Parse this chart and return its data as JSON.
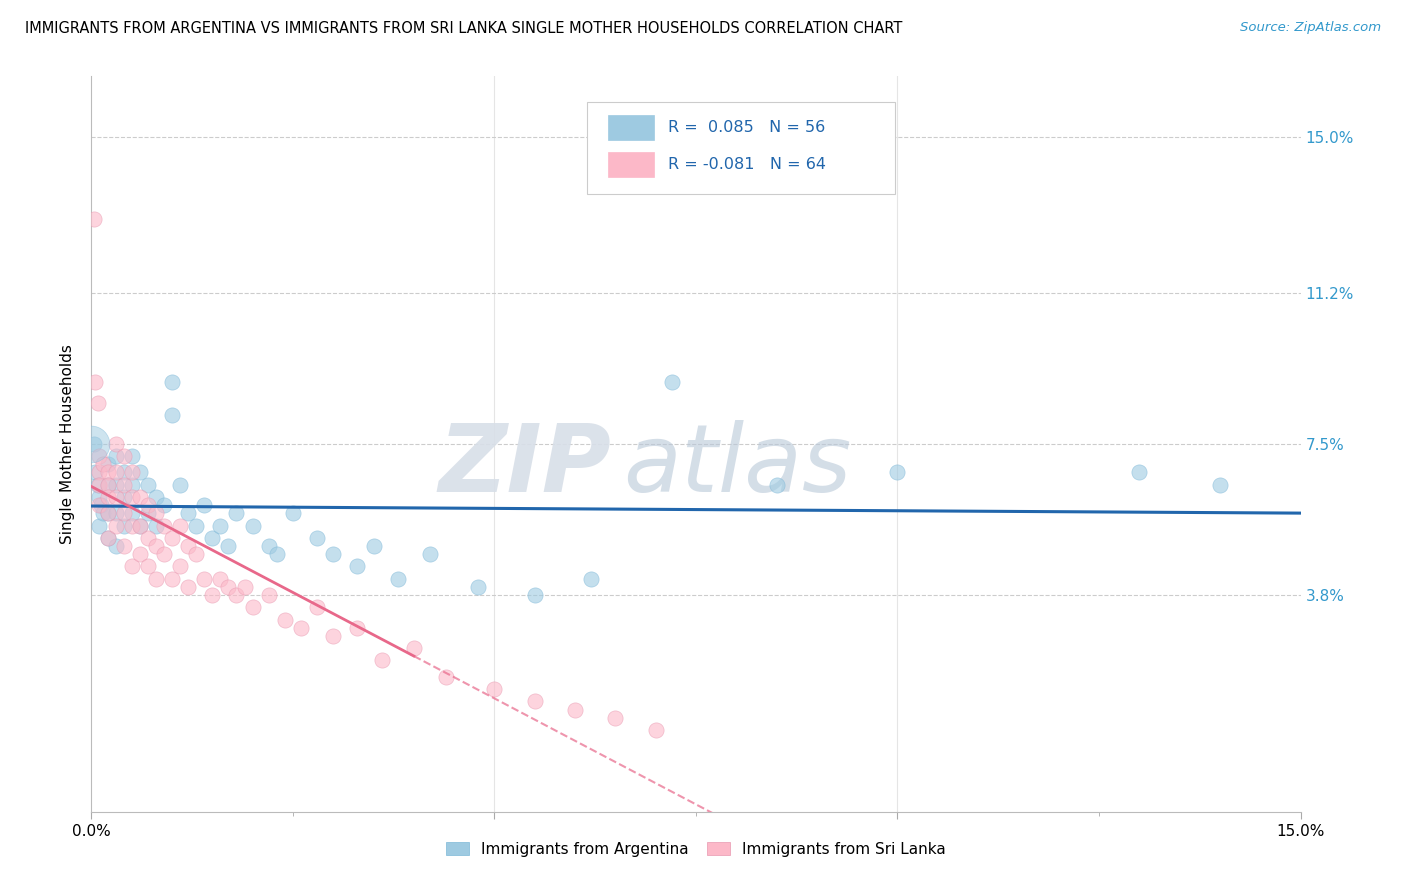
{
  "title": "IMMIGRANTS FROM ARGENTINA VS IMMIGRANTS FROM SRI LANKA SINGLE MOTHER HOUSEHOLDS CORRELATION CHART",
  "source": "Source: ZipAtlas.com",
  "ylabel": "Single Mother Households",
  "ytick_vals": [
    0.038,
    0.075,
    0.112,
    0.15
  ],
  "ytick_labels": [
    "3.8%",
    "7.5%",
    "11.2%",
    "15.0%"
  ],
  "xmin": 0.0,
  "xmax": 0.15,
  "ymin": -0.015,
  "ymax": 0.165,
  "argentina_color": "#9ecae1",
  "srilanka_color": "#fcb8c8",
  "argentina_label": "Immigrants from Argentina",
  "srilanka_label": "Immigrants from Sri Lanka",
  "argentina_R": 0.085,
  "argentina_N": 56,
  "srilanka_R": -0.081,
  "srilanka_N": 64,
  "argentina_line_color": "#2166ac",
  "srilanka_line_color": "#e8688a",
  "watermark_zip": "ZIP",
  "watermark_atlas": "atlas",
  "argentina_x": [
    0.0003,
    0.0005,
    0.0008,
    0.001,
    0.001,
    0.0012,
    0.0015,
    0.002,
    0.002,
    0.002,
    0.002,
    0.003,
    0.003,
    0.003,
    0.003,
    0.004,
    0.004,
    0.004,
    0.005,
    0.005,
    0.005,
    0.006,
    0.006,
    0.007,
    0.007,
    0.008,
    0.008,
    0.009,
    0.01,
    0.01,
    0.011,
    0.012,
    0.013,
    0.014,
    0.015,
    0.016,
    0.017,
    0.018,
    0.02,
    0.022,
    0.023,
    0.025,
    0.028,
    0.03,
    0.033,
    0.035,
    0.038,
    0.042,
    0.048,
    0.055,
    0.062,
    0.072,
    0.085,
    0.1,
    0.13,
    0.14
  ],
  "argentina_y": [
    0.075,
    0.068,
    0.065,
    0.062,
    0.055,
    0.06,
    0.058,
    0.07,
    0.065,
    0.058,
    0.052,
    0.072,
    0.065,
    0.058,
    0.05,
    0.068,
    0.062,
    0.055,
    0.072,
    0.065,
    0.058,
    0.068,
    0.055,
    0.065,
    0.058,
    0.062,
    0.055,
    0.06,
    0.09,
    0.082,
    0.065,
    0.058,
    0.055,
    0.06,
    0.052,
    0.055,
    0.05,
    0.058,
    0.055,
    0.05,
    0.048,
    0.058,
    0.052,
    0.048,
    0.045,
    0.05,
    0.042,
    0.048,
    0.04,
    0.038,
    0.042,
    0.09,
    0.065,
    0.068,
    0.068,
    0.065
  ],
  "srilanka_x": [
    0.0003,
    0.0005,
    0.0008,
    0.001,
    0.001,
    0.001,
    0.001,
    0.0015,
    0.002,
    0.002,
    0.002,
    0.002,
    0.002,
    0.003,
    0.003,
    0.003,
    0.003,
    0.004,
    0.004,
    0.004,
    0.004,
    0.005,
    0.005,
    0.005,
    0.005,
    0.006,
    0.006,
    0.006,
    0.007,
    0.007,
    0.007,
    0.008,
    0.008,
    0.008,
    0.009,
    0.009,
    0.01,
    0.01,
    0.011,
    0.011,
    0.012,
    0.012,
    0.013,
    0.014,
    0.015,
    0.016,
    0.017,
    0.018,
    0.019,
    0.02,
    0.022,
    0.024,
    0.026,
    0.028,
    0.03,
    0.033,
    0.036,
    0.04,
    0.044,
    0.05,
    0.055,
    0.06,
    0.065,
    0.07
  ],
  "srilanka_y": [
    0.13,
    0.09,
    0.085,
    0.072,
    0.068,
    0.065,
    0.06,
    0.07,
    0.068,
    0.065,
    0.062,
    0.058,
    0.052,
    0.075,
    0.068,
    0.062,
    0.055,
    0.072,
    0.065,
    0.058,
    0.05,
    0.068,
    0.062,
    0.055,
    0.045,
    0.062,
    0.055,
    0.048,
    0.06,
    0.052,
    0.045,
    0.058,
    0.05,
    0.042,
    0.055,
    0.048,
    0.052,
    0.042,
    0.055,
    0.045,
    0.05,
    0.04,
    0.048,
    0.042,
    0.038,
    0.042,
    0.04,
    0.038,
    0.04,
    0.035,
    0.038,
    0.032,
    0.03,
    0.035,
    0.028,
    0.03,
    0.022,
    0.025,
    0.018,
    0.015,
    0.012,
    0.01,
    0.008,
    0.005
  ],
  "dot_size": 120
}
